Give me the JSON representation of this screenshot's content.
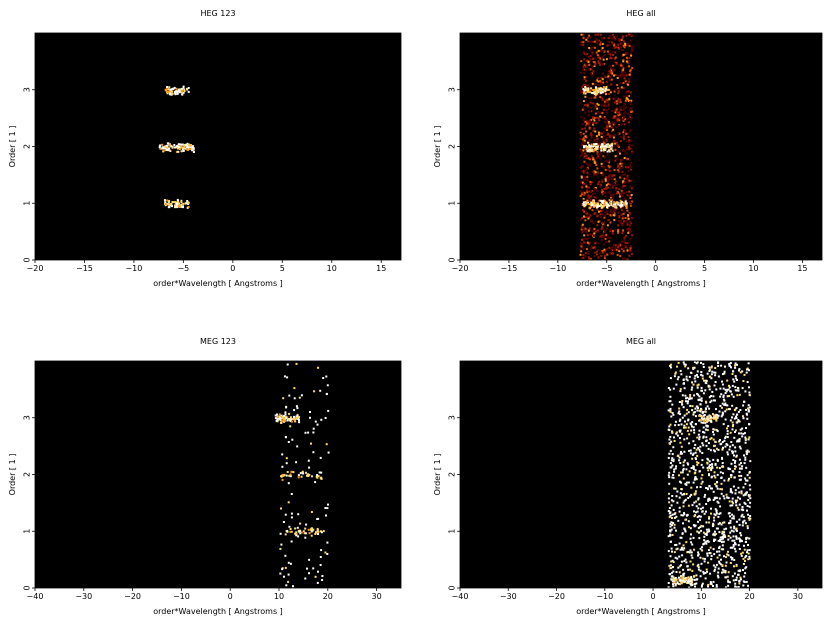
{
  "figure": {
    "colors": {
      "background": "#000000",
      "hot": [
        "#5a0000",
        "#a01800",
        "#e05000",
        "#ff9a20",
        "#ffe070",
        "#ffffff"
      ]
    }
  },
  "chart_data": [
    {
      "type": "heatmap",
      "title": "HEG 123",
      "xlabel": "order*Wavelength [ Angstroms ]",
      "ylabel": "Order [ 1 ]",
      "xlim": [
        -20,
        17
      ],
      "ylim": [
        0,
        4
      ],
      "xticks": [
        -20,
        -15,
        -10,
        -5,
        0,
        5,
        10,
        15
      ],
      "yticks": [
        0,
        1,
        2,
        3
      ],
      "clusters": [
        {
          "x": [
            -7.0,
            -4.5
          ],
          "order": 3,
          "intensity": 0.9
        },
        {
          "x": [
            -7.5,
            -4.0
          ],
          "order": 2,
          "intensity": 0.95
        },
        {
          "x": [
            -7.0,
            -4.5
          ],
          "order": 1,
          "intensity": 0.8
        }
      ],
      "background_band": null
    },
    {
      "type": "heatmap",
      "title": "HEG all",
      "xlabel": "order*Wavelength [ Angstroms ]",
      "ylabel": "Order [ 1 ]",
      "xlim": [
        -20,
        17
      ],
      "ylim": [
        0,
        4
      ],
      "xticks": [
        -20,
        -15,
        -10,
        -5,
        0,
        5,
        10,
        15
      ],
      "yticks": [
        0,
        1,
        2,
        3
      ],
      "clusters": [
        {
          "x": [
            -7.5,
            -5.0
          ],
          "order": 3,
          "intensity": 0.9
        },
        {
          "x": [
            -7.5,
            -4.5
          ],
          "order": 2,
          "intensity": 0.95
        },
        {
          "x": [
            -7.5,
            -3.0
          ],
          "order": 1,
          "intensity": 0.85
        }
      ],
      "background_band": {
        "x": [
          -7.8,
          -2.5
        ],
        "density": 0.55,
        "warm": true
      }
    },
    {
      "type": "heatmap",
      "title": "MEG 123",
      "xlabel": "order*Wavelength [ Angstroms ]",
      "ylabel": "Order [ 1 ]",
      "xlim": [
        -40,
        35
      ],
      "ylim": [
        0,
        4
      ],
      "xticks": [
        -40,
        -30,
        -20,
        -10,
        0,
        10,
        20,
        30
      ],
      "yticks": [
        0,
        1,
        2,
        3
      ],
      "clusters": [
        {
          "x": [
            9.0,
            14.0
          ],
          "order": 3,
          "intensity": 0.9
        },
        {
          "x": [
            10.0,
            19.0
          ],
          "order": 2,
          "intensity": 0.25
        },
        {
          "x": [
            11.0,
            19.0
          ],
          "order": 1,
          "intensity": 0.35
        }
      ],
      "background_band": {
        "x": [
          10.0,
          20.0
        ],
        "density": 0.05,
        "warm": false
      }
    },
    {
      "type": "heatmap",
      "title": "MEG all",
      "xlabel": "order*Wavelength [ Angstroms ]",
      "ylabel": "Order [ 1 ]",
      "xlim": [
        -40,
        35
      ],
      "ylim": [
        0,
        4
      ],
      "xticks": [
        -40,
        -30,
        -20,
        -10,
        0,
        10,
        20,
        30
      ],
      "yticks": [
        0,
        1,
        2,
        3
      ],
      "clusters": [
        {
          "x": [
            9.0,
            13.0
          ],
          "order": 3,
          "intensity": 0.8
        },
        {
          "x": [
            4.0,
            8.0
          ],
          "order": 0.15,
          "intensity": 0.9
        }
      ],
      "background_band": {
        "x": [
          3.0,
          20.0
        ],
        "density": 0.35,
        "warm": false
      }
    }
  ]
}
